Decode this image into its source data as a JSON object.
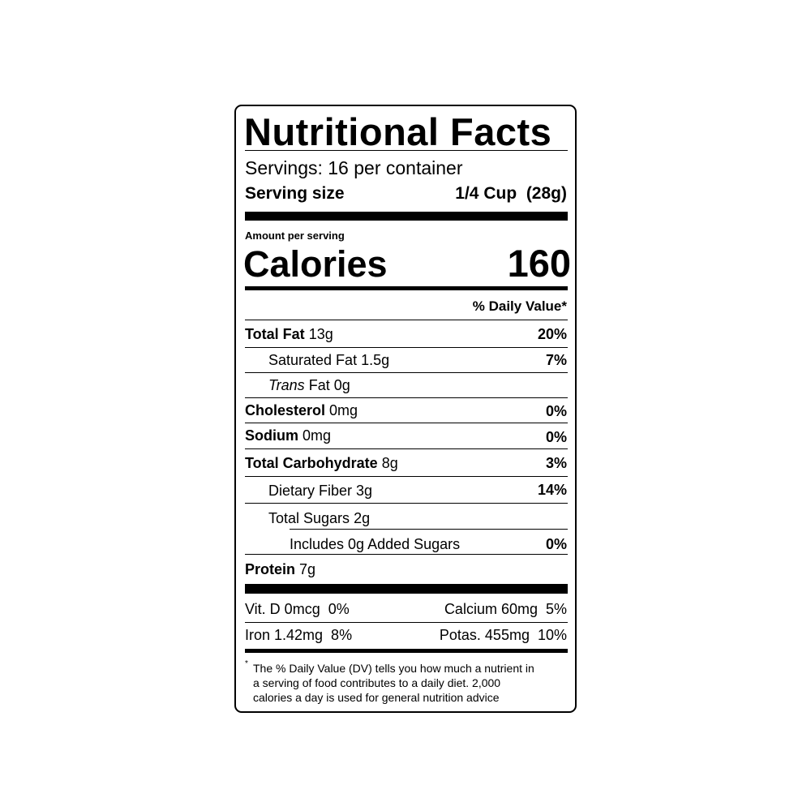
{
  "title": "Nutritional Facts",
  "servings": "Servings: 16 per container",
  "serving_size": {
    "label": "Serving size",
    "value": "1/4 Cup  (28g)"
  },
  "amount_per_serving": "Amount per serving",
  "calories": {
    "label": "Calories",
    "value": "160"
  },
  "dv_header": "% Daily Value*",
  "nutrients": [
    {
      "name": "Total Fat",
      "amount": "13g",
      "dv": "20%"
    },
    {
      "name": "Saturated Fat",
      "amount": "1.5g",
      "dv": "7%"
    },
    {
      "name": "Trans",
      "name_suffix": "Fat",
      "amount": "0g",
      "dv": ""
    },
    {
      "name": "Cholesterol",
      "amount": "0mg",
      "dv": "0%"
    },
    {
      "name": "Sodium",
      "amount": "0mg",
      "dv": "0%"
    },
    {
      "name": "Total Carbohydrate",
      "amount": "8g",
      "dv": "3%"
    },
    {
      "name": "Dietary Fiber",
      "amount": "3g",
      "dv": "14%"
    },
    {
      "name": "Total Sugars",
      "amount": "2g",
      "dv": ""
    },
    {
      "name": "Includes 0g Added Sugars",
      "amount": "",
      "dv": "0%"
    },
    {
      "name": "Protein",
      "amount": "7g",
      "dv": ""
    }
  ],
  "micros": [
    {
      "left": "Vit. D 0mcg  0%",
      "right": "Calcium 60mg  5%"
    },
    {
      "left": "Iron 1.42mg  8%",
      "right": "Potas. 455mg  10%"
    }
  ],
  "footnote": {
    "star": "*",
    "lines": [
      "The % Daily Value (DV) tells you how much a nutrient in",
      "a serving of food contributes to a daily diet. 2,000",
      "calories a day is used for general nutrition advice"
    ]
  }
}
